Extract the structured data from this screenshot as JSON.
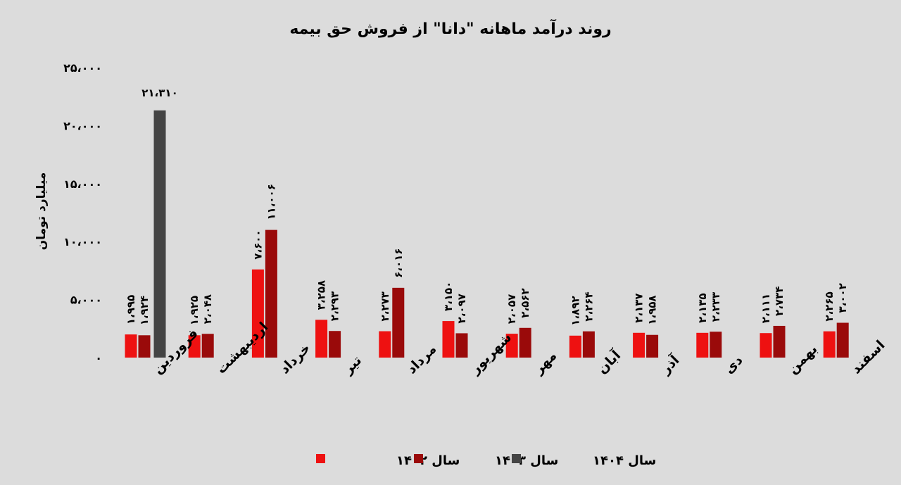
{
  "chart_data": {
    "type": "bar",
    "title": "روند درآمد ماهانه \"دانا\" از فروش حق بیمه",
    "ylabel": "میلیارد تومان",
    "ylim": [
      0,
      25000
    ],
    "yticks": [
      "۰",
      "۵،۰۰۰",
      "۱۰،۰۰۰",
      "۱۵،۰۰۰",
      "۲۰،۰۰۰",
      "۲۵،۰۰۰"
    ],
    "categories": [
      "فروردین",
      "اردیبهشت",
      "خرداد",
      "تیر",
      "مرداد",
      "شهریور",
      "مهر",
      "آبان",
      "آذر",
      "دی",
      "بهمن",
      "اسفند"
    ],
    "series": [
      {
        "name": "سال ۱۴۰۲",
        "color": "#ee1111",
        "values": [
          1995,
          1925,
          7600,
          3258,
          2273,
          3150,
          2057,
          1892,
          2137,
          2135,
          2111,
          2265
        ],
        "labels": [
          "۱،۹۹۵",
          "۱،۹۲۵",
          "۷،۶۰۰",
          "۳،۲۵۸",
          "۲،۲۷۳",
          "۳،۱۵۰",
          "۲،۰۵۷",
          "۱،۸۹۲",
          "۲،۱۳۷",
          "۲،۱۳۵",
          "۲،۱۱۱",
          "۲،۲۶۵"
        ]
      },
      {
        "name": "سال ۱۴۰۳",
        "color": "#9a0a0a",
        "values": [
          1924,
          2048,
          11006,
          2293,
          6016,
          2097,
          2562,
          2264,
          1958,
          2233,
          2734,
          3002
        ],
        "labels": [
          "۱،۹۲۴",
          "۲،۰۴۸",
          "۱۱،۰۰۶",
          "۲،۲۹۳",
          "۶،۰۱۶",
          "۲،۰۹۷",
          "۲،۵۶۲",
          "۲،۲۶۴",
          "۱،۹۵۸",
          "۲،۲۳۳",
          "۲،۷۳۴",
          "۳،۰۰۲"
        ]
      },
      {
        "name": "سال ۱۴۰۴",
        "color": "#444444",
        "values": [
          21310,
          null,
          null,
          null,
          null,
          null,
          null,
          null,
          null,
          null,
          null,
          null
        ],
        "labels": [
          "۲۱،۳۱۰",
          null,
          null,
          null,
          null,
          null,
          null,
          null,
          null,
          null,
          null,
          null
        ]
      }
    ],
    "grid": false,
    "legend": "bottom-center"
  }
}
